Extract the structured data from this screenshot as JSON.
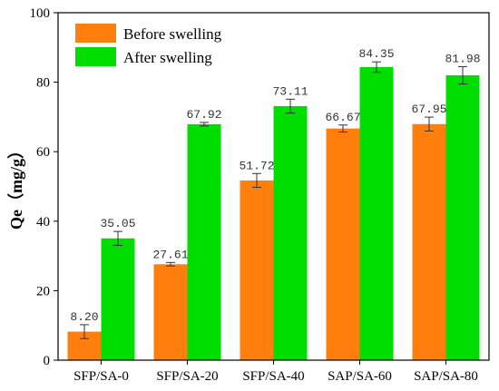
{
  "chart_data": {
    "type": "bar",
    "title": "",
    "xlabel": "",
    "ylabel": "Qe（mg/g）",
    "ylim": [
      0,
      100
    ],
    "yticks": [
      "0",
      "20",
      "40",
      "60",
      "80",
      "100"
    ],
    "categories": [
      "SFP/SA-0",
      "SFP/SA-20",
      "SFP/SA-40",
      "SAP/SA-60",
      "SAP/SA-80"
    ],
    "series": [
      {
        "name": "Before swelling",
        "color": "#FF7F0E",
        "values": [
          8.2,
          27.61,
          51.72,
          66.67,
          67.95
        ],
        "labels": [
          "8.20",
          "27.61",
          "51.72",
          "66.67",
          "67.95"
        ],
        "errors": [
          2.0,
          0.5,
          2.0,
          1.0,
          2.0
        ]
      },
      {
        "name": "After swelling",
        "color": "#00DD00",
        "values": [
          35.05,
          67.92,
          73.11,
          84.35,
          81.98
        ],
        "labels": [
          "35.05",
          "67.92",
          "73.11",
          "84.35",
          "81.98"
        ],
        "errors": [
          2.0,
          0.5,
          2.0,
          1.5,
          2.5
        ]
      }
    ],
    "grid": false,
    "legend_position": "top-left"
  }
}
